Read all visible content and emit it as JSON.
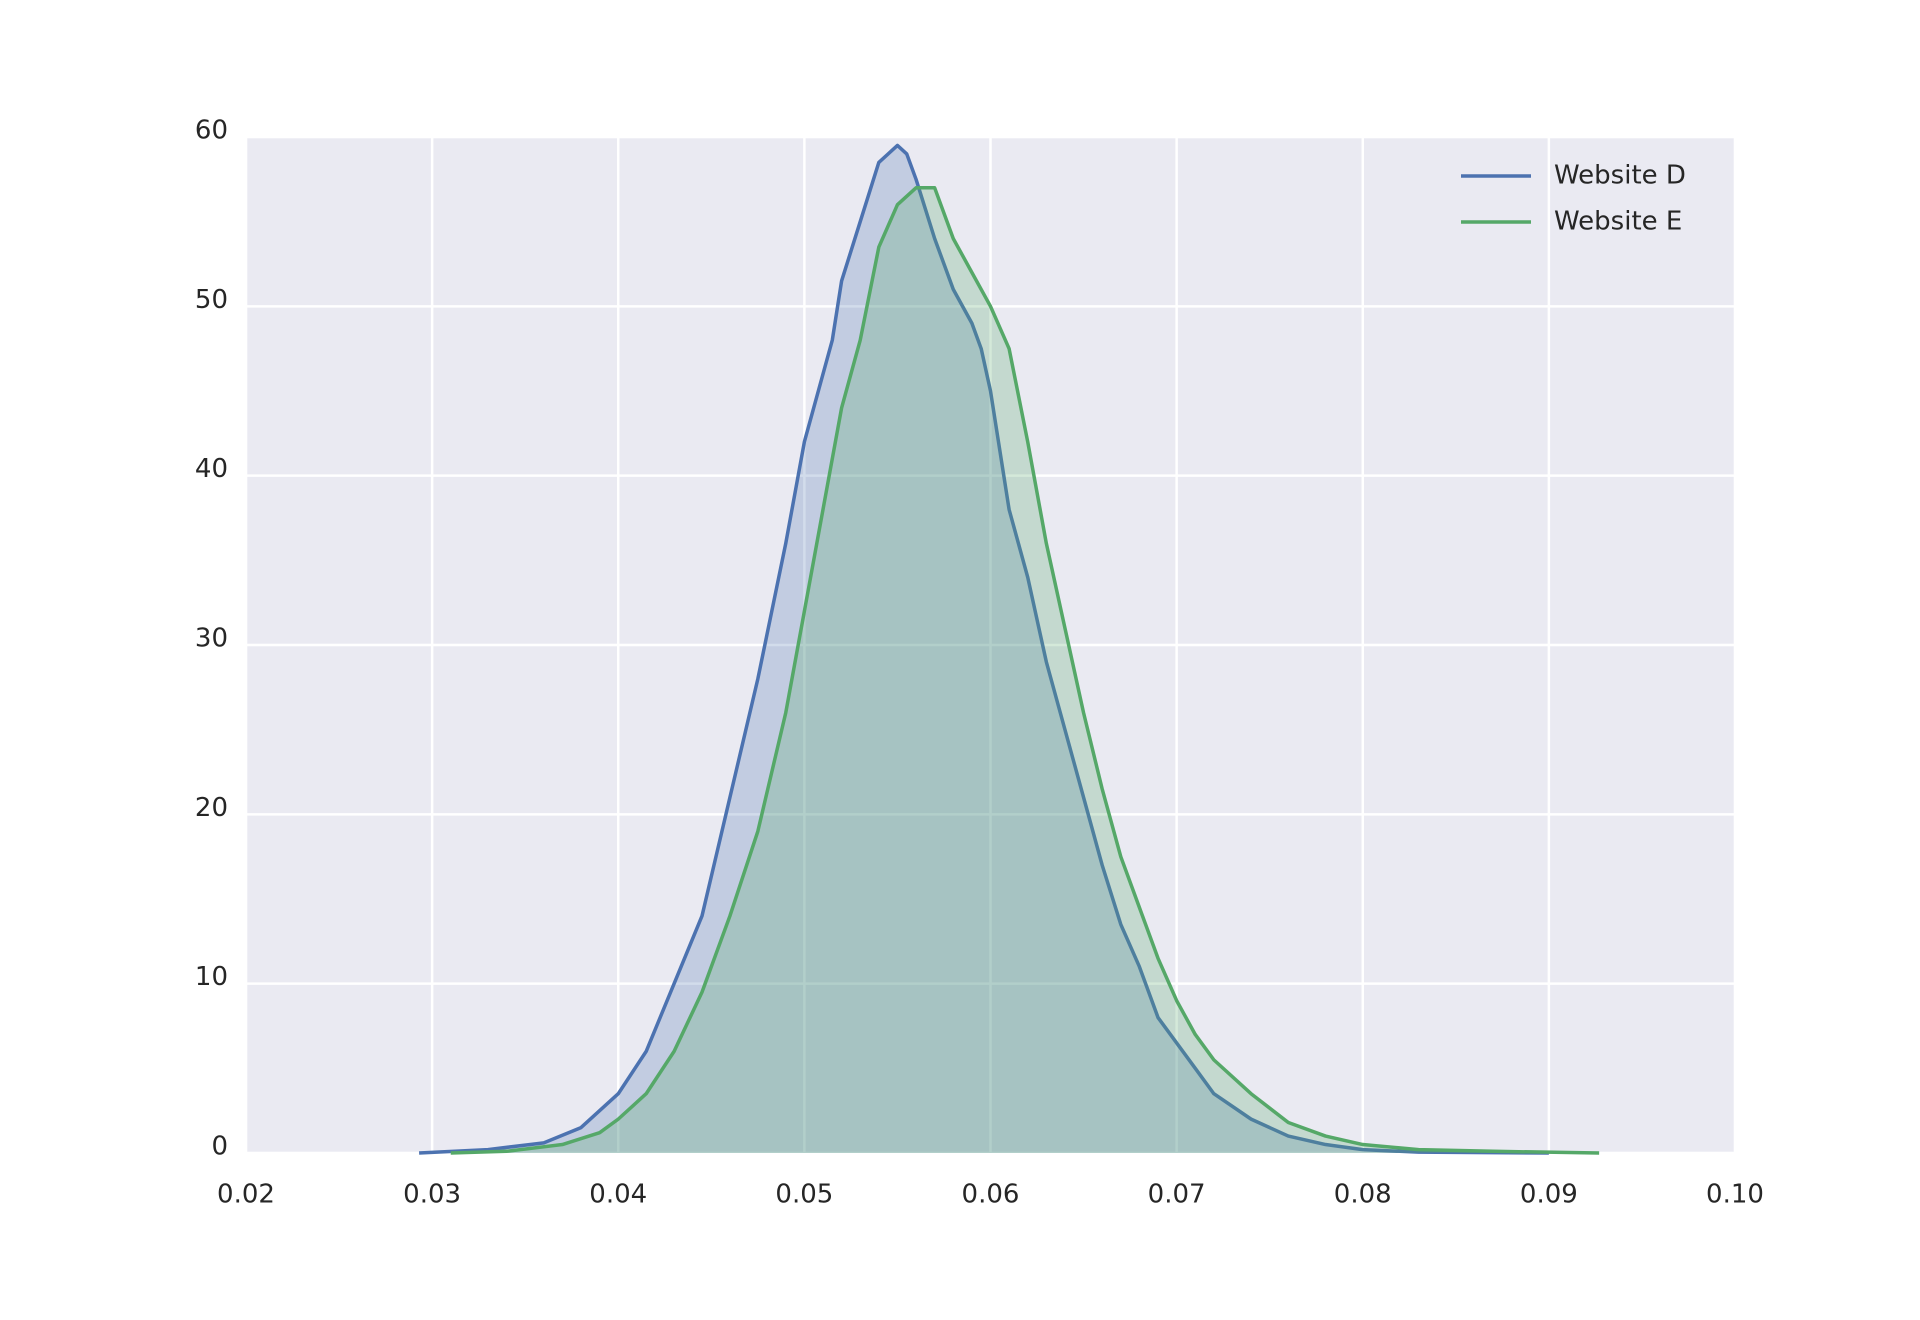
{
  "chart_data": {
    "type": "area",
    "xlim": [
      0.02,
      0.1
    ],
    "ylim": [
      0,
      60
    ],
    "xticks": [
      0.02,
      0.03,
      0.04,
      0.05,
      0.06,
      0.07,
      0.08,
      0.09,
      {
        "value": 0.1,
        "label": "0.10"
      }
    ],
    "yticks": [
      0,
      10,
      20,
      30,
      40,
      50,
      60
    ],
    "grid": true,
    "legend": "upper right",
    "series": [
      {
        "name": "Website D",
        "color": "#4c72b0",
        "x": [
          0.0293,
          0.033,
          0.036,
          0.038,
          0.04,
          0.0415,
          0.043,
          0.0445,
          0.046,
          0.0475,
          0.049,
          0.05,
          0.0515,
          0.052,
          0.053,
          0.054,
          0.055,
          0.0555,
          0.056,
          0.057,
          0.058,
          0.059,
          0.0595,
          0.06,
          0.061,
          0.062,
          0.063,
          0.064,
          0.065,
          0.066,
          0.067,
          0.068,
          0.069,
          0.07,
          0.071,
          0.072,
          0.074,
          0.076,
          0.078,
          0.08,
          0.083,
          0.09
        ],
        "values": [
          0,
          0.2,
          0.6,
          1.5,
          3.5,
          6,
          10,
          14,
          21,
          28,
          36,
          42,
          48,
          51.5,
          55,
          58.5,
          59.5,
          59,
          57.5,
          54,
          51,
          49,
          47.5,
          45,
          38,
          34,
          29,
          25,
          21,
          17,
          13.5,
          11,
          8,
          6.5,
          5,
          3.5,
          2,
          1,
          0.5,
          0.2,
          0.05,
          0
        ]
      },
      {
        "name": "Website E",
        "color": "#55a868",
        "x": [
          0.031,
          0.034,
          0.037,
          0.039,
          0.04,
          0.0415,
          0.043,
          0.0445,
          0.046,
          0.0475,
          0.049,
          0.05,
          0.051,
          0.052,
          0.053,
          0.054,
          0.055,
          0.056,
          0.057,
          0.058,
          0.059,
          0.06,
          0.061,
          0.062,
          0.063,
          0.064,
          0.065,
          0.066,
          0.067,
          0.068,
          0.069,
          0.07,
          0.071,
          0.072,
          0.074,
          0.076,
          0.078,
          0.08,
          0.083,
          0.087,
          0.0927
        ],
        "values": [
          0,
          0.1,
          0.5,
          1.2,
          2,
          3.5,
          6,
          9.5,
          14,
          19,
          26,
          32,
          38,
          44,
          48,
          53.5,
          56,
          57,
          57,
          54,
          52,
          50,
          47.5,
          42,
          36,
          31,
          26,
          21.5,
          17.5,
          14.5,
          11.5,
          9,
          7,
          5.5,
          3.5,
          1.8,
          1,
          0.5,
          0.2,
          0.1,
          0
        ]
      }
    ]
  }
}
